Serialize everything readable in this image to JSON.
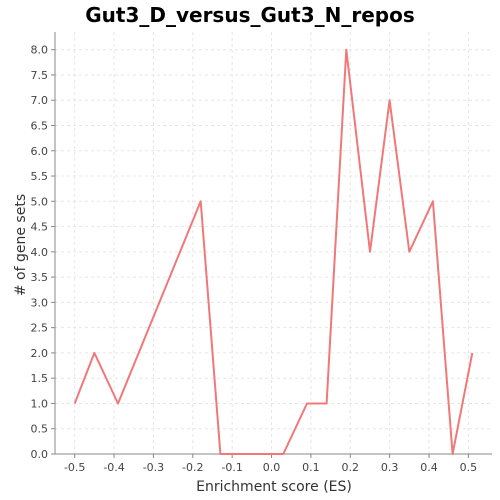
{
  "chart_data": {
    "type": "line",
    "title": "Gut3_D_versus_Gut3_N_repos",
    "xlabel": "Enrichment score (ES)",
    "ylabel": "# of gene sets",
    "xlim": [
      -0.55,
      0.56
    ],
    "ylim": [
      0,
      8.35
    ],
    "grid": true,
    "x_ticks": [
      -0.5,
      -0.4,
      -0.3,
      -0.2,
      -0.1,
      0.0,
      0.1,
      0.2,
      0.3,
      0.4,
      0.5
    ],
    "x_tick_labels": [
      "-0.5",
      "-0.4",
      "-0.3",
      "-0.2",
      "-0.1",
      "0.0",
      "0.1",
      "0.2",
      "0.3",
      "0.4",
      "0.5"
    ],
    "y_ticks": [
      0.0,
      0.5,
      1.0,
      1.5,
      2.0,
      2.5,
      3.0,
      3.5,
      4.0,
      4.5,
      5.0,
      5.5,
      6.0,
      6.5,
      7.0,
      7.5,
      8.0
    ],
    "y_tick_labels": [
      "0.0",
      "0.5",
      "1.0",
      "1.5",
      "2.0",
      "2.5",
      "3.0",
      "3.5",
      "4.0",
      "4.5",
      "5.0",
      "5.5",
      "6.0",
      "6.5",
      "7.0",
      "7.5",
      "8.0"
    ],
    "series": [
      {
        "color": "#f07878",
        "points": [
          [
            -0.5,
            1
          ],
          [
            -0.45,
            2
          ],
          [
            -0.39,
            1
          ],
          [
            -0.18,
            5
          ],
          [
            -0.13,
            0
          ],
          [
            -0.08,
            0
          ],
          [
            -0.03,
            0
          ],
          [
            0.03,
            0
          ],
          [
            0.09,
            1
          ],
          [
            0.14,
            1
          ],
          [
            0.19,
            8
          ],
          [
            0.25,
            4
          ],
          [
            0.3,
            7
          ],
          [
            0.35,
            4
          ],
          [
            0.41,
            5
          ],
          [
            0.46,
            0
          ],
          [
            0.51,
            2
          ]
        ]
      }
    ]
  }
}
